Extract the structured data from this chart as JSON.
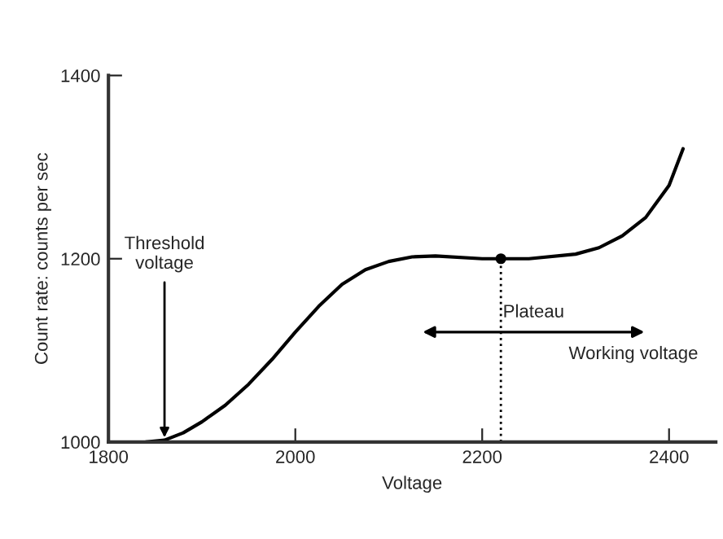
{
  "chart_data": {
    "type": "line",
    "xlabel": "Voltage",
    "ylabel": "Count rate: counts per sec",
    "xlim": [
      1800,
      2450
    ],
    "ylim": [
      1000,
      1400
    ],
    "xticks": [
      1800,
      2000,
      2200,
      2400
    ],
    "yticks": [
      1000,
      1200,
      1400
    ],
    "grid": false,
    "series": [
      {
        "color": "#000000",
        "x": [
          1840,
          1860,
          1880,
          1900,
          1925,
          1950,
          1975,
          2000,
          2025,
          2050,
          2075,
          2100,
          2125,
          2150,
          2200,
          2250,
          2300,
          2325,
          2350,
          2375,
          2400,
          2415
        ],
        "values": [
          1000,
          1002,
          1010,
          1022,
          1040,
          1063,
          1090,
          1120,
          1148,
          1172,
          1188,
          1197,
          1202,
          1203,
          1200,
          1200,
          1205,
          1212,
          1225,
          1245,
          1280,
          1320
        ]
      },
      {
        "type": "scatter",
        "color": "#000000",
        "x": [
          2220
        ],
        "values": [
          1200
        ]
      }
    ],
    "ref_lines": [
      {
        "axis": "x",
        "value": 2220,
        "label": "Working voltage",
        "line_style": "dotted"
      }
    ],
    "annotations": [
      {
        "text": "Threshold\nvoltage",
        "x": 1860,
        "y": 1000
      },
      "Plateau"
    ]
  }
}
